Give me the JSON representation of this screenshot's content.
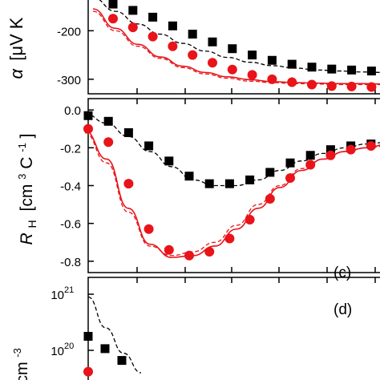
{
  "colors": {
    "black_series": "#000000",
    "red_series": "#e8141a",
    "axis": "#000000"
  },
  "chart_data": [
    {
      "type": "scatter",
      "panel": "a",
      "ylabel_symbol": "α",
      "ylabel_unit": "[μV K",
      "ylim": [
        -330,
        -130
      ],
      "yticks": [
        -200,
        -300
      ],
      "ytick_labels": [
        "-200",
        "-300"
      ],
      "series": [
        {
          "marker": "square",
          "color": "#000000",
          "values": [
            -145,
            -158,
            -172,
            -190,
            -207,
            -223,
            -237,
            -250,
            -261,
            -269,
            -275,
            -279,
            -281,
            -283
          ]
        },
        {
          "marker": "circle",
          "color": "#e8141a",
          "values": [
            -175,
            -193,
            -212,
            -232,
            -250,
            -266,
            -280,
            -291,
            -300,
            -306,
            -311,
            -314,
            -315,
            -316
          ]
        }
      ],
      "fit_curves": [
        {
          "style": "dashed",
          "color": "#000000",
          "values": [
            -132,
            -160,
            -186,
            -207,
            -226,
            -242,
            -255,
            -265,
            -272,
            -277,
            -281,
            -283,
            -285,
            -286
          ]
        },
        {
          "style": "solid",
          "color": "#e8141a",
          "values": [
            -155,
            -195,
            -228,
            -254,
            -273,
            -286,
            -295,
            -301,
            -305,
            -307,
            -308,
            -309,
            -309,
            -310
          ]
        },
        {
          "style": "dashed",
          "color": "#e8141a",
          "values": [
            -160,
            -200,
            -232,
            -257,
            -276,
            -289,
            -298,
            -304,
            -307,
            -309,
            -310,
            -311,
            -311,
            -311
          ]
        }
      ]
    },
    {
      "type": "scatter",
      "panel": "c",
      "panel_label": "(c)",
      "ylabel_symbol": "R",
      "ylabel_sub": "H",
      "ylabel_unit": "[cm",
      "ylabel_sup1": "3",
      "ylabel_mid": " C",
      "ylabel_sup2": "-1",
      "ylabel_end": "]",
      "ylim": [
        -0.86,
        0.06
      ],
      "yticks": [
        0.0,
        -0.2,
        -0.4,
        -0.6,
        -0.8
      ],
      "ytick_labels": [
        "0.0",
        "-0.2",
        "-0.4",
        "-0.6",
        "-0.8"
      ],
      "series": [
        {
          "marker": "square",
          "color": "#000000",
          "values": [
            -0.03,
            -0.06,
            -0.12,
            -0.19,
            -0.27,
            -0.35,
            -0.39,
            -0.39,
            -0.37,
            -0.33,
            -0.28,
            -0.24,
            -0.21,
            -0.19,
            -0.18
          ]
        },
        {
          "marker": "circle",
          "color": "#e8141a",
          "values": [
            -0.1,
            -0.17,
            -0.39,
            -0.63,
            -0.74,
            -0.77,
            -0.75,
            -0.68,
            -0.58,
            -0.47,
            -0.36,
            -0.29,
            -0.24,
            -0.21,
            -0.19
          ]
        }
      ],
      "fit_curves": [
        {
          "style": "dashed",
          "color": "#000000",
          "values": [
            -0.02,
            -0.07,
            -0.14,
            -0.22,
            -0.3,
            -0.37,
            -0.4,
            -0.4,
            -0.37,
            -0.32,
            -0.27,
            -0.23,
            -0.2,
            -0.18,
            -0.17
          ]
        },
        {
          "style": "solid",
          "color": "#e8141a",
          "values": [
            -0.11,
            -0.26,
            -0.52,
            -0.71,
            -0.78,
            -0.77,
            -0.72,
            -0.63,
            -0.52,
            -0.41,
            -0.32,
            -0.26,
            -0.22,
            -0.2,
            -0.18
          ]
        },
        {
          "style": "dashed",
          "color": "#e8141a",
          "values": [
            -0.12,
            -0.28,
            -0.54,
            -0.72,
            -0.77,
            -0.75,
            -0.7,
            -0.61,
            -0.5,
            -0.4,
            -0.31,
            -0.26,
            -0.22,
            -0.2,
            -0.19
          ]
        }
      ]
    },
    {
      "type": "scatter",
      "panel": "d",
      "panel_label": "(d)",
      "ylabel_unit": "cm",
      "ylabel_sup": "-3",
      "yscale": "log",
      "ylim": [
        19.3,
        21.3
      ],
      "yticks": [
        21,
        20
      ],
      "ytick_labels": [
        {
          "base": "10",
          "exp": "21"
        },
        {
          "base": "10",
          "exp": "20"
        }
      ],
      "series": [
        {
          "marker": "square",
          "color": "#000000",
          "values": [
            20.25,
            20.03,
            19.82
          ]
        },
        {
          "marker": "circle",
          "color": "#e8141a",
          "values": [
            19.62
          ]
        }
      ],
      "fit_curves": [
        {
          "style": "dashed",
          "color": "#000000",
          "values": [
            20.95,
            20.4,
            19.95,
            19.6
          ]
        }
      ]
    }
  ]
}
